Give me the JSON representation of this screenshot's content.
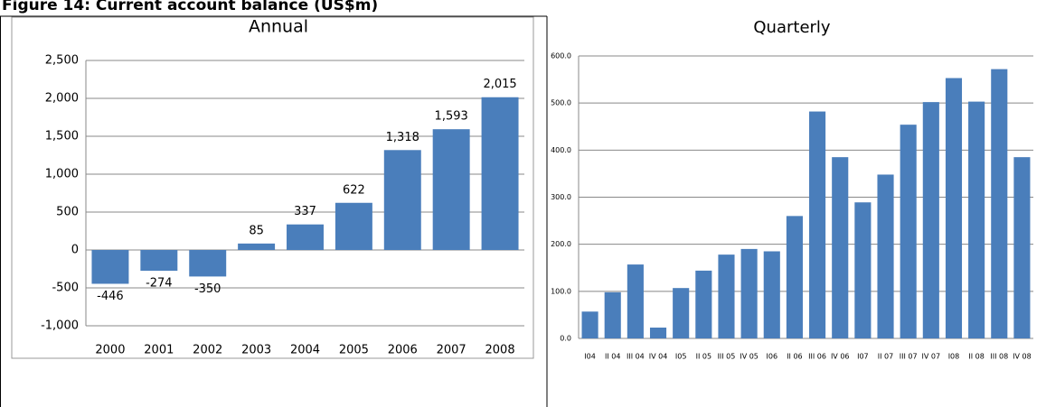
{
  "title": "Figure 14: Current account balance (US$m)",
  "chart_data": [
    {
      "type": "bar",
      "title": "Annual",
      "categories": [
        "2000",
        "2001",
        "2002",
        "2003",
        "2004",
        "2005",
        "2006",
        "2007",
        "2008"
      ],
      "values": [
        -446,
        -274,
        -350,
        85,
        337,
        622,
        1318,
        1593,
        2015
      ],
      "value_labels": [
        "-446",
        "-274",
        "-350",
        "85",
        "337",
        "622",
        "1,318",
        "1,593",
        "2,015"
      ],
      "color": "#4a7ebb",
      "ylim": [
        -1000,
        2500
      ],
      "yticks": [
        {
          "value": -1000,
          "label": "-1,000"
        },
        -500,
        0,
        500,
        {
          "value": 1000,
          "label": "1,000"
        },
        {
          "value": 1500,
          "label": "1,500"
        },
        {
          "value": 2000,
          "label": "2,000"
        },
        {
          "value": 2500,
          "label": "2,500"
        }
      ],
      "grid": true
    },
    {
      "type": "bar",
      "title": "Quarterly",
      "categories": [
        "I04",
        "II 04",
        "III 04",
        "IV 04",
        "I05",
        "II 05",
        "III 05",
        "IV 05",
        "I06",
        "II 06",
        "III 06",
        "IV 06",
        "I07",
        "II 07",
        "III 07",
        "IV 07",
        "I08",
        "II 08",
        "III 08",
        "IV 08"
      ],
      "values": [
        57,
        98,
        157,
        23,
        107,
        144,
        178,
        190,
        185,
        260,
        482,
        385,
        289,
        348,
        454,
        502,
        553,
        503,
        572,
        385
      ],
      "color": "#4a7ebb",
      "ylim": [
        0,
        600
      ],
      "yticks": [
        {
          "value": 0,
          "label": "0.0"
        },
        {
          "value": 100,
          "label": "100.0"
        },
        {
          "value": 200,
          "label": "200.0"
        },
        {
          "value": 300,
          "label": "300.0"
        },
        {
          "value": 400,
          "label": "400.0"
        },
        {
          "value": 500,
          "label": "500.0"
        },
        {
          "value": 600,
          "label": "600.0"
        }
      ],
      "grid": true
    }
  ]
}
